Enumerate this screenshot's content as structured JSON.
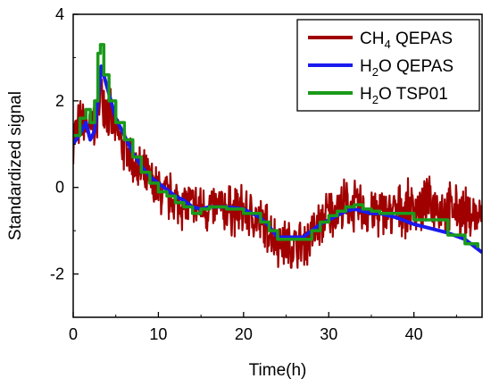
{
  "chart_data": {
    "type": "line",
    "title": "",
    "xlabel": "Time(h)",
    "ylabel": "Standardized signal",
    "xlim": [
      0,
      48
    ],
    "ylim": [
      -3,
      4
    ],
    "xticks": [
      0,
      10,
      20,
      30,
      40
    ],
    "yticks": [
      4,
      2,
      0,
      -2
    ],
    "grid": false,
    "legend": {
      "placement": "top-right",
      "entries": [
        {
          "label_main": "CH",
          "label_sub": "4",
          "label_rest": " QEPAS",
          "color": "#a00000"
        },
        {
          "label_main": "H",
          "label_sub": "2",
          "label_rest": "O QEPAS",
          "color": "#1a1aee"
        },
        {
          "label_main": "H",
          "label_sub": "2",
          "label_rest": "O TSP01",
          "color": "#1a9a1a"
        }
      ]
    },
    "series": [
      {
        "name": "CH4 QEPAS",
        "color": "#a00000",
        "style": "noisy",
        "noise_amplitude": 0.7,
        "x": [
          0,
          1,
          2,
          2.8,
          3.2,
          4,
          5,
          6,
          8,
          10,
          12,
          14,
          16,
          18,
          20,
          22,
          24,
          26,
          27,
          28,
          30,
          32,
          34,
          36,
          38,
          40,
          42,
          44,
          46,
          48
        ],
        "y": [
          1.2,
          1.5,
          1.3,
          1.6,
          2.3,
          1.8,
          1.3,
          0.9,
          0.3,
          -0.1,
          -0.3,
          -0.45,
          -0.5,
          -0.5,
          -0.55,
          -0.8,
          -1.2,
          -1.4,
          -1.3,
          -1.1,
          -0.6,
          -0.4,
          -0.5,
          -0.6,
          -0.55,
          -0.45,
          -0.4,
          -0.5,
          -0.6,
          -0.7
        ]
      },
      {
        "name": "H2O QEPAS",
        "color": "#1a1aee",
        "style": "smooth",
        "x": [
          0,
          1,
          1.5,
          2,
          2.5,
          3,
          3.3,
          4,
          5,
          6,
          7,
          8,
          9,
          10,
          11,
          12,
          13,
          14,
          15,
          16,
          18,
          20,
          22,
          23,
          24,
          25,
          26,
          27,
          28,
          29,
          30,
          31,
          32,
          33,
          34,
          35,
          36,
          38,
          40,
          42,
          44,
          46,
          48
        ],
        "y": [
          1.0,
          1.3,
          1.5,
          1.1,
          1.3,
          2.2,
          2.8,
          2.3,
          1.6,
          1.2,
          0.8,
          0.5,
          0.25,
          0.1,
          -0.05,
          -0.2,
          -0.3,
          -0.45,
          -0.5,
          -0.45,
          -0.45,
          -0.5,
          -0.7,
          -0.9,
          -1.15,
          -1.15,
          -1.15,
          -1.15,
          -1.0,
          -0.85,
          -0.75,
          -0.65,
          -0.55,
          -0.5,
          -0.55,
          -0.6,
          -0.6,
          -0.7,
          -0.85,
          -0.95,
          -1.05,
          -1.2,
          -1.5
        ]
      },
      {
        "name": "H2O TSP01",
        "color": "#1a9a1a",
        "style": "step",
        "x": [
          0,
          0.8,
          1.5,
          2,
          2.5,
          2.9,
          3.2,
          3.6,
          4.2,
          5,
          6,
          7,
          8,
          9,
          10,
          11,
          12,
          13,
          14,
          15,
          16,
          18,
          20,
          22,
          23,
          24,
          25,
          26,
          27,
          28,
          29,
          30,
          31,
          32,
          33,
          34,
          35,
          36,
          38,
          40,
          42,
          44,
          46,
          47.5
        ],
        "y": [
          1.2,
          1.6,
          1.8,
          1.5,
          2.0,
          3.1,
          3.3,
          2.6,
          2.0,
          1.5,
          1.1,
          0.7,
          0.35,
          0.1,
          -0.1,
          -0.2,
          -0.35,
          -0.45,
          -0.6,
          -0.5,
          -0.45,
          -0.5,
          -0.6,
          -0.8,
          -1.0,
          -1.2,
          -1.2,
          -1.2,
          -1.2,
          -1.0,
          -0.8,
          -0.65,
          -0.55,
          -0.45,
          -0.4,
          -0.5,
          -0.55,
          -0.6,
          -0.6,
          -0.75,
          -0.75,
          -1.1,
          -1.3,
          -1.4
        ]
      }
    ]
  }
}
